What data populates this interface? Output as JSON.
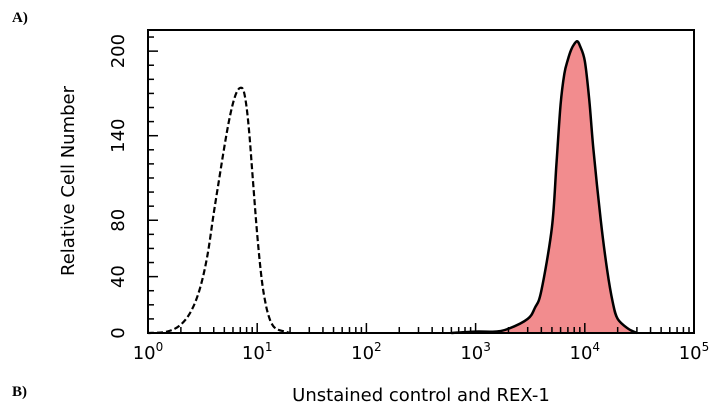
{
  "panel_labels": {
    "top": "A)",
    "bottom": "B)"
  },
  "chart_data": {
    "type": "area",
    "title": "",
    "xlabel": "Unstained control and REX-1",
    "ylabel": "Relative Cell Number",
    "x_scale": "log",
    "xlim": [
      1,
      100000
    ],
    "ylim": [
      0,
      215
    ],
    "y_ticks": [
      0,
      40,
      80,
      140,
      200
    ],
    "x_ticks": [
      {
        "base": "10",
        "exp": "0"
      },
      {
        "base": "10",
        "exp": "1"
      },
      {
        "base": "10",
        "exp": "2"
      },
      {
        "base": "10",
        "exp": "3"
      },
      {
        "base": "10",
        "exp": "4"
      },
      {
        "base": "10",
        "exp": "5"
      }
    ],
    "series": [
      {
        "style": "dashed-outline",
        "color": "#000000",
        "x": [
          1,
          1.5,
          2,
          2.5,
          3,
          3.5,
          4,
          4.5,
          5,
          5.5,
          6,
          6.5,
          7,
          7.5,
          8,
          8.5,
          9,
          10,
          11,
          12,
          13,
          14,
          15,
          16,
          18,
          20
        ],
        "y": [
          0,
          1,
          6,
          16,
          32,
          55,
          85,
          110,
          132,
          150,
          163,
          171,
          174,
          172,
          160,
          140,
          115,
          70,
          38,
          20,
          10,
          5,
          3,
          2,
          1,
          0
        ]
      },
      {
        "style": "filled",
        "color": "#f28c8e",
        "edge": "#000000",
        "x": [
          600,
          1000,
          1500,
          2000,
          3000,
          3500,
          4000,
          5000,
          5500,
          6000,
          6500,
          7000,
          7500,
          8000,
          8500,
          9000,
          10000,
          11000,
          12000,
          14000,
          16000,
          18000,
          20000,
          25000,
          30000
        ],
        "y": [
          0,
          1,
          1,
          3,
          10,
          18,
          30,
          75,
          120,
          162,
          184,
          194,
          201,
          205,
          207,
          204,
          193,
          165,
          130,
          80,
          45,
          22,
          10,
          3,
          0
        ]
      }
    ]
  }
}
